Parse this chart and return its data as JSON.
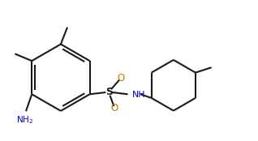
{
  "bg_color": "#ffffff",
  "line_color": "#1a1a1a",
  "o_color": "#cc7700",
  "n_color": "#0000cc",
  "s_color": "#1a1a1a",
  "bond_lw": 1.5,
  "fig_width": 3.18,
  "fig_height": 1.74,
  "dpi": 100,
  "xlim": [
    0.0,
    10.5
  ],
  "ylim": [
    2.5,
    8.5
  ]
}
